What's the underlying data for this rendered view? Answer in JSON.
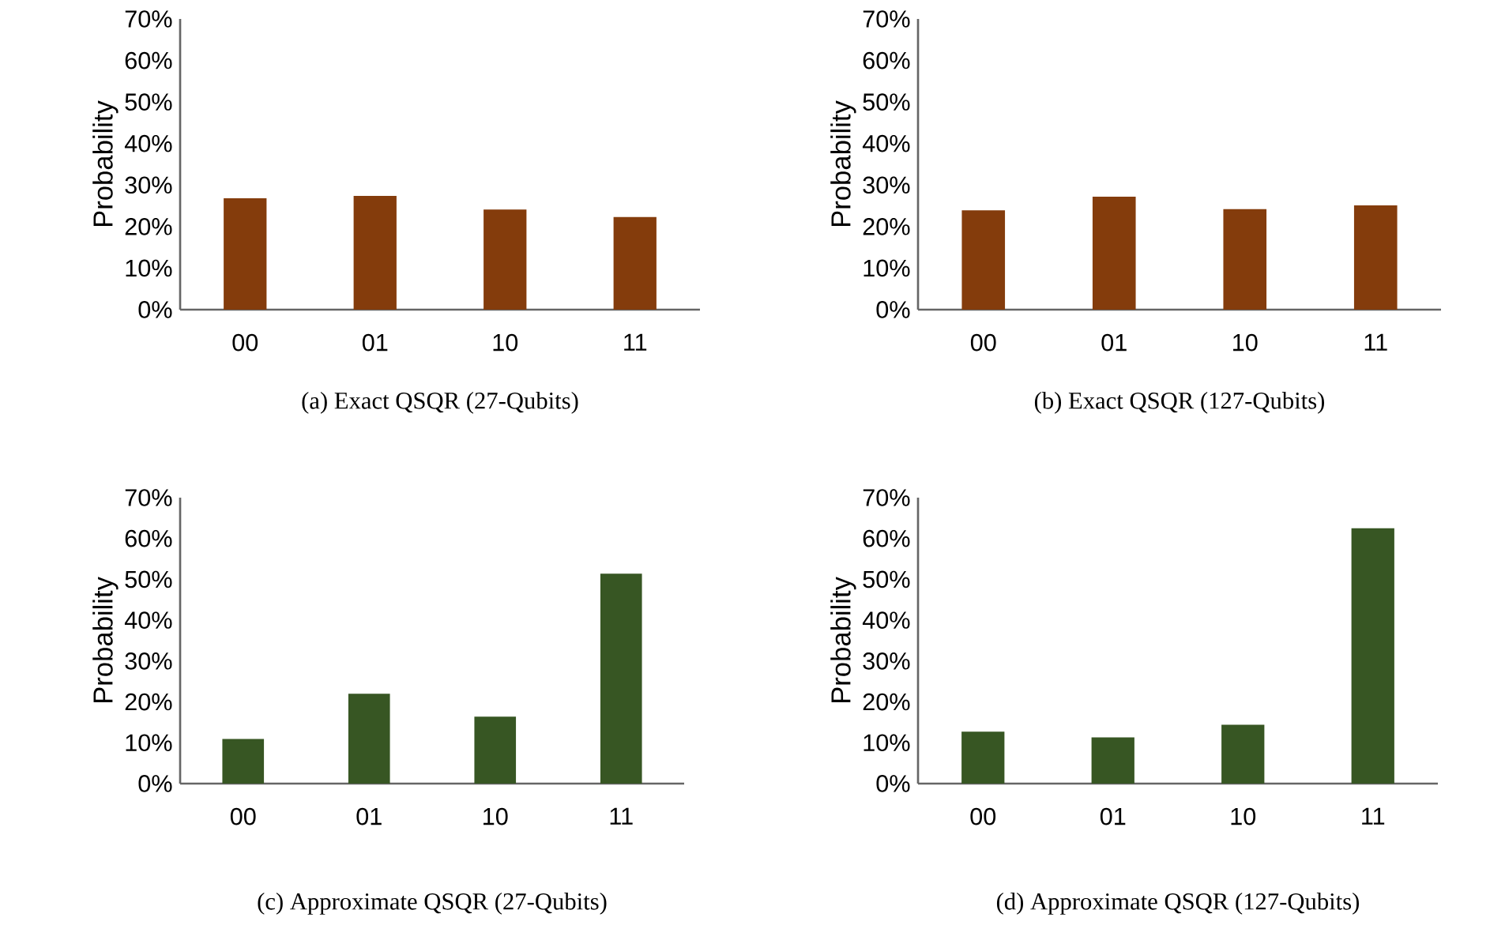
{
  "chart_data": [
    {
      "type": "bar",
      "title": "(a) Exact QSQR (27-Qubits)",
      "ylabel": "Probability",
      "categories": [
        "00",
        "01",
        "10",
        "11"
      ],
      "values": [
        26.8,
        27.4,
        24.1,
        22.3
      ],
      "color": "#843c0c",
      "ylim": [
        0,
        70
      ],
      "yticks": [
        {
          "value": 0,
          "label": "0%"
        },
        {
          "value": 10,
          "label": "10%"
        },
        {
          "value": 20,
          "label": "20%"
        },
        {
          "value": 30,
          "label": "30%"
        },
        {
          "value": 40,
          "label": "40%"
        },
        {
          "value": 50,
          "label": "50%"
        },
        {
          "value": 60,
          "label": "60%"
        },
        {
          "value": 70,
          "label": "70%"
        }
      ]
    },
    {
      "type": "bar",
      "title": "(b) Exact QSQR (127-Qubits)",
      "ylabel": "Probability",
      "categories": [
        "00",
        "01",
        "10",
        "11"
      ],
      "values": [
        23.9,
        27.2,
        24.2,
        25.1
      ],
      "color": "#843c0c",
      "ylim": [
        0,
        70
      ],
      "yticks": [
        {
          "value": 0,
          "label": "0%"
        },
        {
          "value": 10,
          "label": "10%"
        },
        {
          "value": 20,
          "label": "20%"
        },
        {
          "value": 30,
          "label": "30%"
        },
        {
          "value": 40,
          "label": "40%"
        },
        {
          "value": 50,
          "label": "50%"
        },
        {
          "value": 60,
          "label": "60%"
        },
        {
          "value": 70,
          "label": "70%"
        }
      ]
    },
    {
      "type": "bar",
      "title": "(c) Approximate QSQR (27-Qubits)",
      "ylabel": "Probability",
      "categories": [
        "00",
        "01",
        "10",
        "11"
      ],
      "values": [
        10.9,
        22.0,
        16.4,
        51.4
      ],
      "color": "#375623",
      "ylim": [
        0,
        70
      ],
      "yticks": [
        {
          "value": 0,
          "label": "0%"
        },
        {
          "value": 10,
          "label": "10%"
        },
        {
          "value": 20,
          "label": "20%"
        },
        {
          "value": 30,
          "label": "30%"
        },
        {
          "value": 40,
          "label": "40%"
        },
        {
          "value": 50,
          "label": "50%"
        },
        {
          "value": 60,
          "label": "60%"
        },
        {
          "value": 70,
          "label": "70%"
        }
      ]
    },
    {
      "type": "bar",
      "title": "(d) Approximate QSQR (127-Qubits)",
      "ylabel": "Probability",
      "categories": [
        "00",
        "01",
        "10",
        "11"
      ],
      "values": [
        12.7,
        11.3,
        14.4,
        62.5
      ],
      "color": "#375623",
      "ylim": [
        0,
        70
      ],
      "yticks": [
        {
          "value": 0,
          "label": "0%"
        },
        {
          "value": 10,
          "label": "10%"
        },
        {
          "value": 20,
          "label": "20%"
        },
        {
          "value": 30,
          "label": "30%"
        },
        {
          "value": 40,
          "label": "40%"
        },
        {
          "value": 50,
          "label": "50%"
        },
        {
          "value": 60,
          "label": "60%"
        },
        {
          "value": 70,
          "label": "70%"
        }
      ]
    }
  ]
}
